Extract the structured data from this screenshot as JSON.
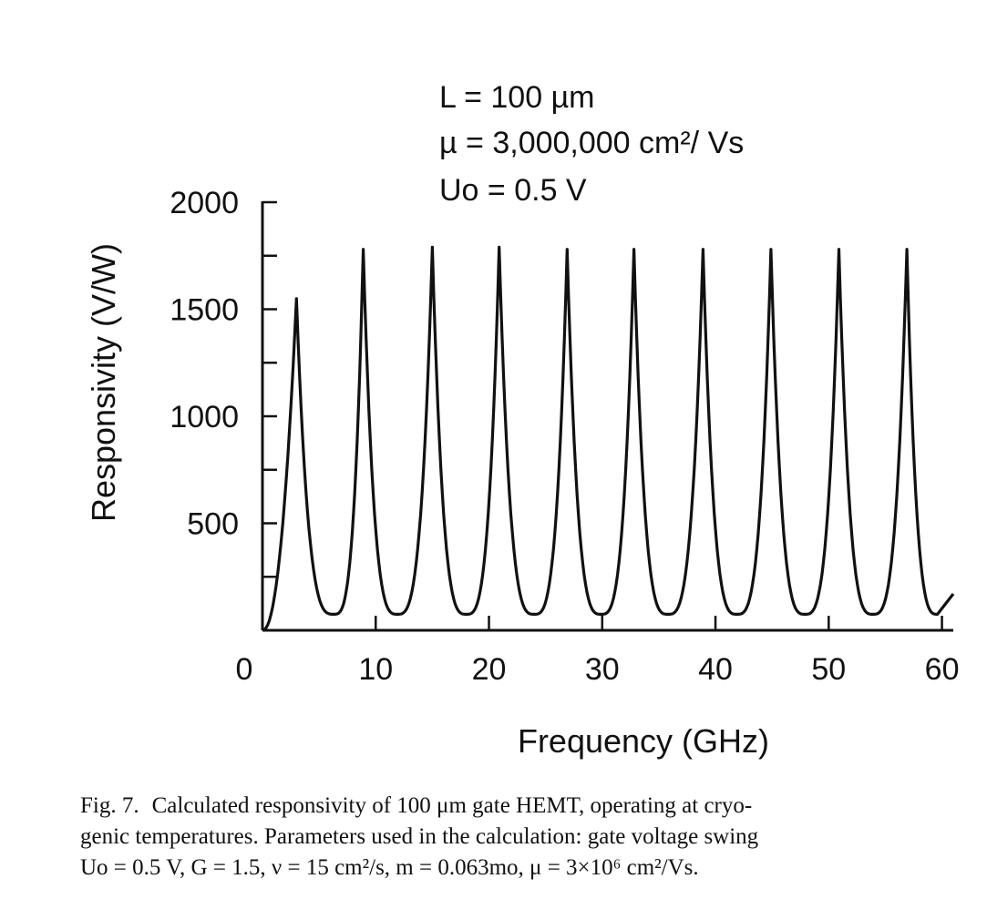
{
  "chart_data": {
    "type": "line",
    "xlabel": "Frequency (GHz)",
    "ylabel": "Responsivity (V/W)",
    "xlim": [
      0,
      61
    ],
    "ylim": [
      0,
      2000
    ],
    "x_ticks": [
      0,
      10,
      20,
      30,
      40,
      50,
      60
    ],
    "y_ticks": [
      500,
      1000,
      1500,
      2000
    ],
    "y_minor_step": 250,
    "grid": false,
    "annotations": [
      "L = 100 µm",
      "µ = 3,000,000 cm²/ Vs",
      "Uo = 0.5 V"
    ],
    "series": [
      {
        "color": "#111111",
        "peaks": [
          {
            "x": 3.0,
            "y": 1550
          },
          {
            "x": 8.9,
            "y": 1780
          },
          {
            "x": 15.0,
            "y": 1790
          },
          {
            "x": 20.9,
            "y": 1790
          },
          {
            "x": 26.9,
            "y": 1780
          },
          {
            "x": 32.8,
            "y": 1780
          },
          {
            "x": 38.9,
            "y": 1780
          },
          {
            "x": 44.9,
            "y": 1780
          },
          {
            "x": 50.9,
            "y": 1780
          },
          {
            "x": 56.9,
            "y": 1780
          }
        ],
        "minima": [
          {
            "x": 6.3,
            "y": 75
          },
          {
            "x": 11.9,
            "y": 75
          },
          {
            "x": 18.0,
            "y": 75
          },
          {
            "x": 24.0,
            "y": 75
          },
          {
            "x": 29.9,
            "y": 75
          },
          {
            "x": 35.8,
            "y": 75
          },
          {
            "x": 41.9,
            "y": 75
          },
          {
            "x": 47.9,
            "y": 75
          },
          {
            "x": 53.9,
            "y": 75
          },
          {
            "x": 59.6,
            "y": 75
          }
        ],
        "start": {
          "x": 0,
          "y": 0
        },
        "end": {
          "x": 61,
          "y": 170
        }
      }
    ]
  },
  "caption": {
    "label": "Fig. 7.",
    "line1": "Calculated responsivity of 100 μm gate HEMT, operating at cryo-",
    "line2": "genic temperatures. Parameters used in the calculation: gate voltage swing",
    "line3": "Uo = 0.5 V, G = 1.5, ν = 15 cm²/s, m = 0.063mo, μ = 3×10⁶ cm²/Vs."
  }
}
